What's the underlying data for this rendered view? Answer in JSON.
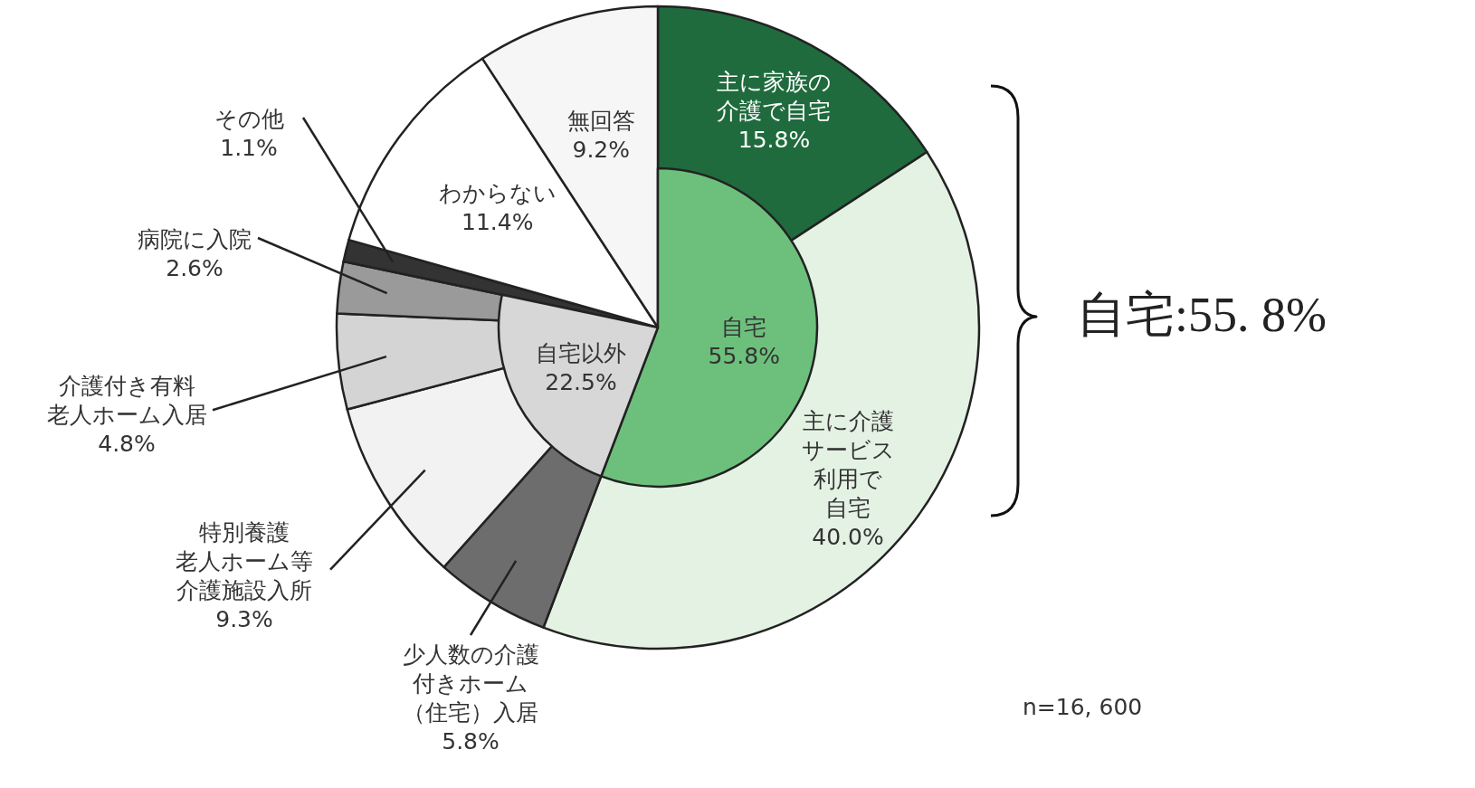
{
  "chart_data": [
    {
      "type": "pie",
      "categories": [
        "主に家族の介護で自宅",
        "主に介護サービス利用で自宅",
        "少人数の介護付きホーム（住宅）入居",
        "特別養護老人ホーム等介護施設入所",
        "介護付き有料老人ホーム入居",
        "病院に入院",
        "その他",
        "わからない",
        "無回答"
      ],
      "value_labels": [
        "15.8%",
        "40.0%",
        "5.8%",
        "9.3%",
        "4.8%",
        "2.6%",
        "1.1%",
        "11.4%",
        "9.2%"
      ],
      "values": [
        15.8,
        40.0,
        5.8,
        9.3,
        4.8,
        2.6,
        1.1,
        11.4,
        9.2
      ],
      "colors": [
        "#1f6b3d",
        "#e4f2e3",
        "#6d6d6d",
        "#f2f2f2",
        "#d4d4d4",
        "#9a9a9a",
        "#333333",
        "#ffffff",
        "#f6f6f6"
      ],
      "annotations": [
        "自宅:55. 8%",
        "n=16, 600"
      ]
    },
    {
      "type": "pie",
      "categories": [
        "自宅",
        "自宅以外"
      ],
      "values": [
        55.8,
        22.5
      ],
      "colors": [
        "#6dc07c",
        "#d7d7d7"
      ],
      "value_labels": [
        "55.8%",
        "22.5%"
      ]
    }
  ]
}
